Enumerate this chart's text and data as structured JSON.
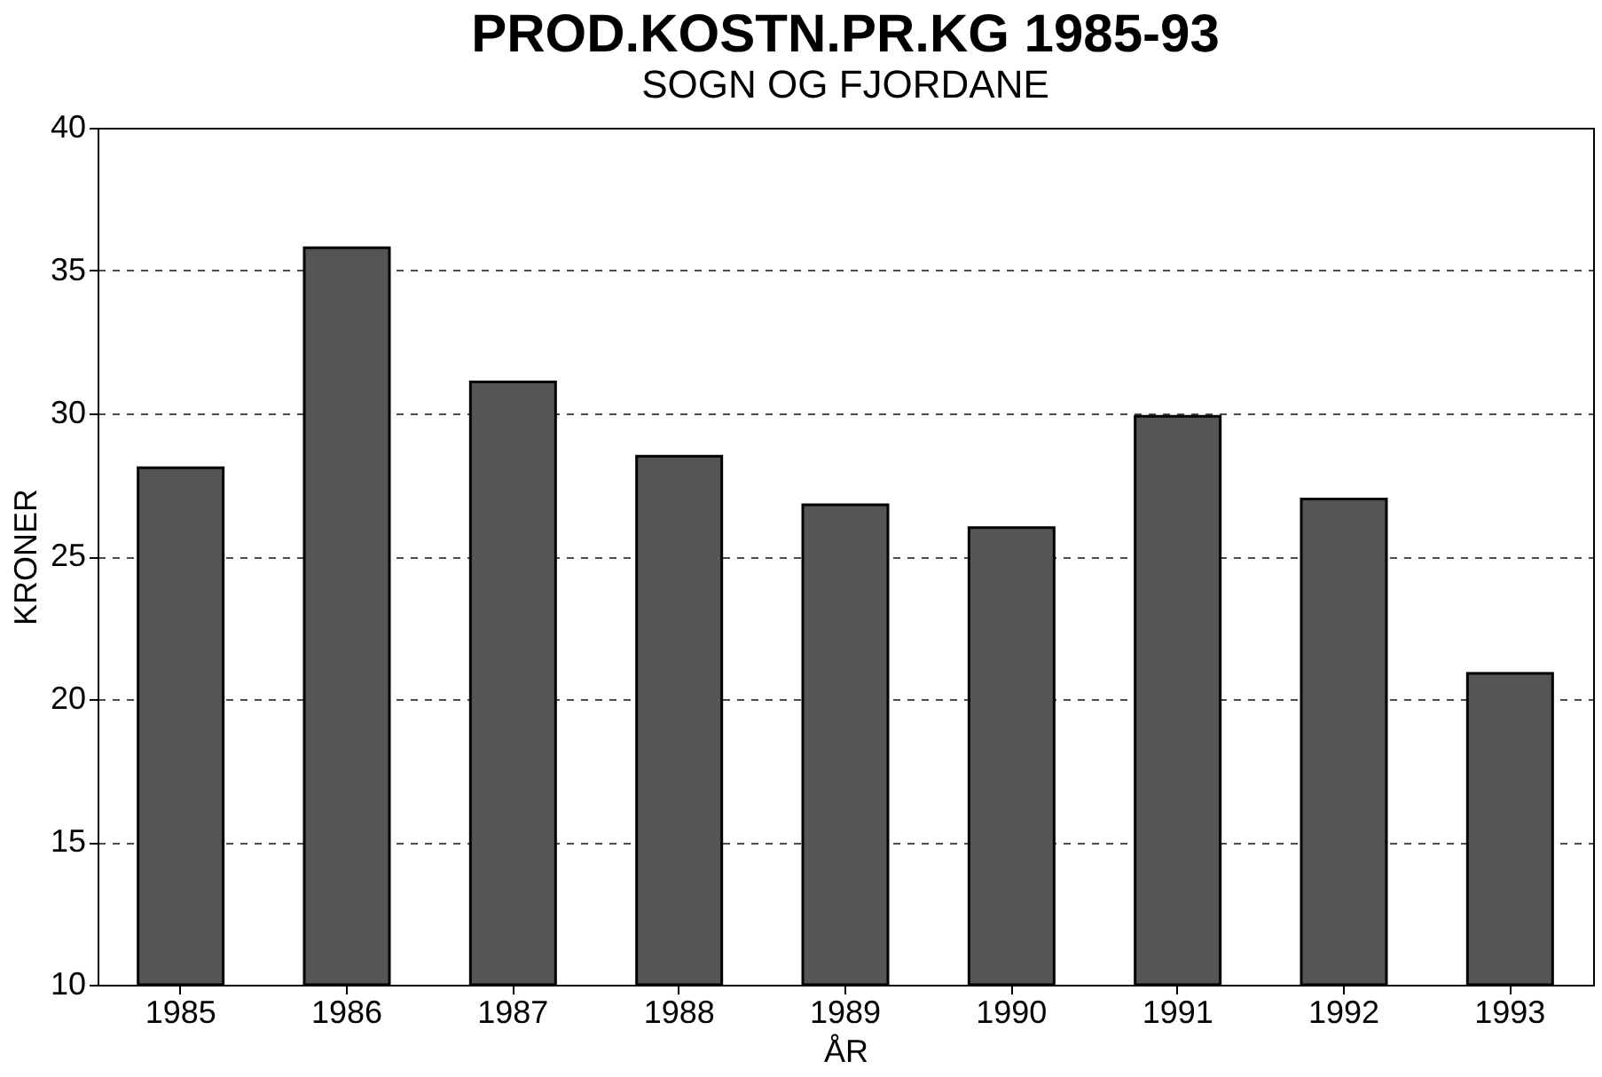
{
  "chart_data": {
    "type": "bar",
    "title": "PROD.KOSTN.PR.KG 1985-93",
    "subtitle": "SOGN OG FJORDANE",
    "xlabel": "ÅR",
    "ylabel": "KRONER",
    "categories": [
      "1985",
      "1986",
      "1987",
      "1988",
      "1989",
      "1990",
      "1991",
      "1992",
      "1993"
    ],
    "values": [
      28.1,
      35.8,
      31.1,
      28.5,
      26.8,
      26.0,
      29.9,
      27.0,
      20.9
    ],
    "color": "#555555",
    "ylim": [
      10,
      40
    ],
    "yticks": [
      10,
      15,
      20,
      25,
      30,
      35,
      40
    ],
    "grid": "y",
    "line_style": "dashed"
  }
}
